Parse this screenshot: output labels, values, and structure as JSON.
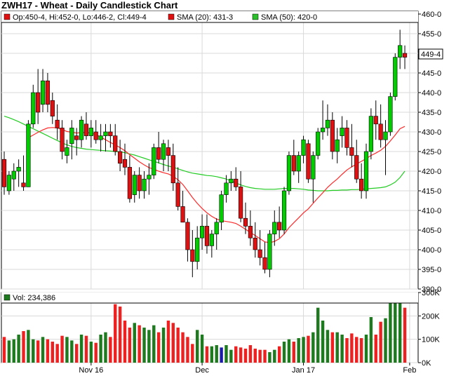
{
  "title": "ZWH17 - Wheat - Daily Candlestick Chart",
  "legend": {
    "ohlc": "Op:450-4, Hi:452-0, Lo:446-2, Cl:449-4",
    "sma20": "SMA (20): 431-3",
    "sma50": "SMA (50): 420-0",
    "volume": "Vol: 234,386"
  },
  "colors": {
    "up": "#00cc00",
    "down": "#dd1111",
    "sma20": "#ff2a2a",
    "sma50": "#22cc22",
    "volume_up": "#1e7a1e",
    "volume_down": "#ee2020",
    "volume_unchanged": "#1a1aaa",
    "legend_ohlc_marker": "#e01010",
    "legend_sma20_marker": "#e01010",
    "legend_sma50_marker": "#2bbf2b",
    "legend_vol_marker": "#1e7a1e",
    "grid": "#d9d9d9"
  },
  "last_price_label": "449-4",
  "chart_data": [
    {
      "type": "candlestick",
      "title": "ZWH17 - Wheat - Daily Candlestick Chart",
      "ylim": [
        390,
        460
      ],
      "yticks": [
        "390-0",
        "395-0",
        "400-0",
        "405-0",
        "410-0",
        "415-0",
        "420-0",
        "425-0",
        "430-0",
        "435-0",
        "440-0",
        "445-0",
        "450-0",
        "455-0",
        "460-0"
      ],
      "xticks": [
        "Nov 16",
        "Dec",
        "Jan 17",
        "Feb"
      ],
      "xtick_index": [
        18,
        41,
        62,
        84
      ],
      "grid": true,
      "bars": [
        [
          423,
          425,
          414,
          416
        ],
        [
          415,
          420,
          414,
          419
        ],
        [
          418,
          422,
          415,
          420
        ],
        [
          420,
          423,
          416,
          421
        ],
        [
          417,
          424,
          415,
          416
        ],
        [
          416,
          433,
          416,
          432
        ],
        [
          432,
          442,
          431,
          440
        ],
        [
          440,
          446,
          432,
          435
        ],
        [
          437,
          446,
          435,
          443
        ],
        [
          443,
          445,
          435,
          437
        ],
        [
          438,
          440,
          432,
          434
        ],
        [
          433,
          437,
          428,
          431
        ],
        [
          431,
          433,
          423,
          425
        ],
        [
          424,
          428,
          422,
          426
        ],
        [
          427,
          433,
          423,
          431
        ],
        [
          429,
          431,
          424,
          428
        ],
        [
          428,
          434,
          426,
          433
        ],
        [
          432,
          435,
          428,
          429
        ],
        [
          429,
          433,
          426,
          431
        ],
        [
          430,
          433,
          427,
          428
        ],
        [
          428,
          432,
          425,
          429
        ],
        [
          429,
          432,
          425,
          430
        ],
        [
          430,
          432,
          426,
          429
        ],
        [
          429,
          432,
          424,
          425
        ],
        [
          425,
          428,
          420,
          422
        ],
        [
          423,
          427,
          419,
          421
        ],
        [
          421,
          424,
          412,
          413
        ],
        [
          414,
          420,
          412,
          419
        ],
        [
          419,
          421,
          413,
          415
        ],
        [
          415,
          420,
          413,
          418
        ],
        [
          418,
          422,
          414,
          419
        ],
        [
          419,
          427,
          418,
          426
        ],
        [
          426,
          430,
          422,
          423
        ],
        [
          423,
          428,
          420,
          427
        ],
        [
          426,
          428,
          420,
          424
        ],
        [
          424,
          427,
          415,
          417
        ],
        [
          417,
          421,
          410,
          411
        ],
        [
          411,
          415,
          407,
          407
        ],
        [
          407,
          408,
          397,
          400
        ],
        [
          400,
          405,
          393,
          397
        ],
        [
          397,
          406,
          395,
          403
        ],
        [
          403,
          409,
          400,
          406
        ],
        [
          406,
          409,
          399,
          401
        ],
        [
          401,
          405,
          398,
          404
        ],
        [
          404,
          408,
          400,
          407
        ],
        [
          407,
          415,
          405,
          414
        ],
        [
          414,
          419,
          412,
          417
        ],
        [
          417,
          420,
          415,
          418
        ],
        [
          418,
          421,
          415,
          416
        ],
        [
          416,
          420,
          407,
          408
        ],
        [
          408,
          412,
          404,
          406
        ],
        [
          406,
          410,
          401,
          403
        ],
        [
          403,
          407,
          398,
          400
        ],
        [
          400,
          405,
          396,
          398
        ],
        [
          398,
          402,
          394,
          395
        ],
        [
          395,
          405,
          393,
          404
        ],
        [
          404,
          410,
          401,
          407
        ],
        [
          407,
          411,
          403,
          405
        ],
        [
          405,
          416,
          404,
          415
        ],
        [
          415,
          425,
          414,
          424
        ],
        [
          424,
          428,
          419,
          420
        ],
        [
          420,
          425,
          417,
          424
        ],
        [
          424,
          429,
          422,
          428
        ],
        [
          427,
          428,
          417,
          418
        ],
        [
          418,
          425,
          412,
          424
        ],
        [
          424,
          431,
          423,
          430
        ],
        [
          430,
          438,
          428,
          431
        ],
        [
          431,
          437,
          429,
          433
        ],
        [
          433,
          435,
          423,
          425
        ],
        [
          425,
          431,
          422,
          428
        ],
        [
          429,
          434,
          426,
          431
        ],
        [
          431,
          433,
          424,
          426
        ],
        [
          426,
          432,
          421,
          424
        ],
        [
          424,
          428,
          417,
          418
        ],
        [
          418,
          422,
          413,
          415
        ],
        [
          415,
          427,
          413,
          425
        ],
        [
          425,
          436,
          423,
          434
        ],
        [
          434,
          438,
          428,
          432
        ],
        [
          432,
          437,
          426,
          428
        ],
        [
          428,
          433,
          419,
          430
        ],
        [
          430,
          440,
          429,
          439
        ],
        [
          439,
          450,
          438,
          449
        ],
        [
          449,
          456,
          446,
          452
        ],
        [
          450,
          452,
          446,
          449
        ]
      ],
      "sma20": [
        null,
        null,
        null,
        null,
        null,
        428.5,
        429.2,
        429.9,
        430.5,
        431.0,
        431.1,
        431.0,
        430.6,
        430.1,
        429.9,
        429.7,
        429.8,
        429.8,
        429.7,
        429.3,
        428.7,
        428.0,
        427.3,
        426.7,
        426.0,
        425.2,
        424.2,
        423.3,
        422.4,
        421.6,
        420.9,
        420.5,
        420.0,
        419.6,
        419.3,
        418.7,
        417.8,
        416.6,
        415.0,
        413.3,
        411.8,
        410.5,
        409.4,
        408.5,
        407.8,
        407.4,
        407.2,
        407.0,
        406.7,
        406.0,
        405.2,
        404.4,
        403.6,
        402.8,
        402.0,
        401.8,
        402.1,
        402.8,
        404.0,
        405.6,
        406.9,
        408.1,
        409.4,
        410.4,
        411.8,
        413.2,
        414.5,
        415.9,
        417.0,
        418.0,
        419.2,
        420.3,
        421.1,
        421.8,
        422.5,
        423.2,
        424.0,
        424.6,
        425.3,
        426.3,
        427.7,
        429.2,
        430.8,
        431.4
      ],
      "sma50": [
        434.0,
        433.6,
        433.1,
        432.6,
        432.0,
        431.4,
        430.8,
        430.2,
        429.6,
        429.0,
        428.4,
        427.8,
        427.2,
        426.7,
        426.3,
        426.0,
        425.8,
        425.6,
        425.5,
        425.4,
        425.3,
        425.2,
        425.1,
        425.0,
        424.9,
        424.7,
        424.4,
        424.1,
        423.7,
        423.3,
        422.9,
        422.5,
        422.1,
        421.7,
        421.3,
        421.0,
        420.6,
        420.2,
        419.8,
        419.5,
        419.3,
        419.1,
        418.9,
        418.8,
        418.6,
        418.3,
        418.0,
        417.5,
        417.0,
        416.5,
        416.1,
        415.8,
        415.6,
        415.5,
        415.4,
        415.4,
        415.4,
        415.5,
        415.6,
        415.6,
        415.6,
        415.5,
        415.4,
        415.2,
        415.1,
        415.0,
        415.0,
        415.0,
        415.1,
        415.1,
        415.2,
        415.2,
        415.3,
        415.3,
        415.4,
        415.5,
        415.6,
        415.7,
        415.8,
        416.0,
        416.5,
        417.2,
        418.4,
        420.0
      ]
    },
    {
      "type": "bar",
      "title": "Vol: 234,386",
      "ylim": [
        0,
        300000
      ],
      "yticks": [
        "0K",
        "100K",
        "200K",
        "300K"
      ],
      "values": [
        110000,
        95000,
        100000,
        120000,
        135000,
        140000,
        100000,
        95000,
        110000,
        100000,
        90000,
        80000,
        115000,
        110000,
        95000,
        80000,
        120000,
        115000,
        90000,
        85000,
        120000,
        130000,
        110000,
        250000,
        240000,
        180000,
        150000,
        170000,
        160000,
        150000,
        140000,
        160000,
        130000,
        150000,
        180000,
        170000,
        150000,
        130000,
        110000,
        80000,
        140000,
        120000,
        70000,
        70000,
        75000,
        65000,
        75000,
        55000,
        70000,
        65000,
        60000,
        75000,
        60000,
        55000,
        55000,
        45000,
        55000,
        70000,
        90000,
        100000,
        90000,
        105000,
        110000,
        115000,
        130000,
        235000,
        180000,
        140000,
        130000,
        130000,
        120000,
        105000,
        125000,
        110000,
        105000,
        120000,
        195000,
        120000,
        175000,
        190000,
        265000,
        270000,
        260000,
        235000
      ]
    }
  ]
}
